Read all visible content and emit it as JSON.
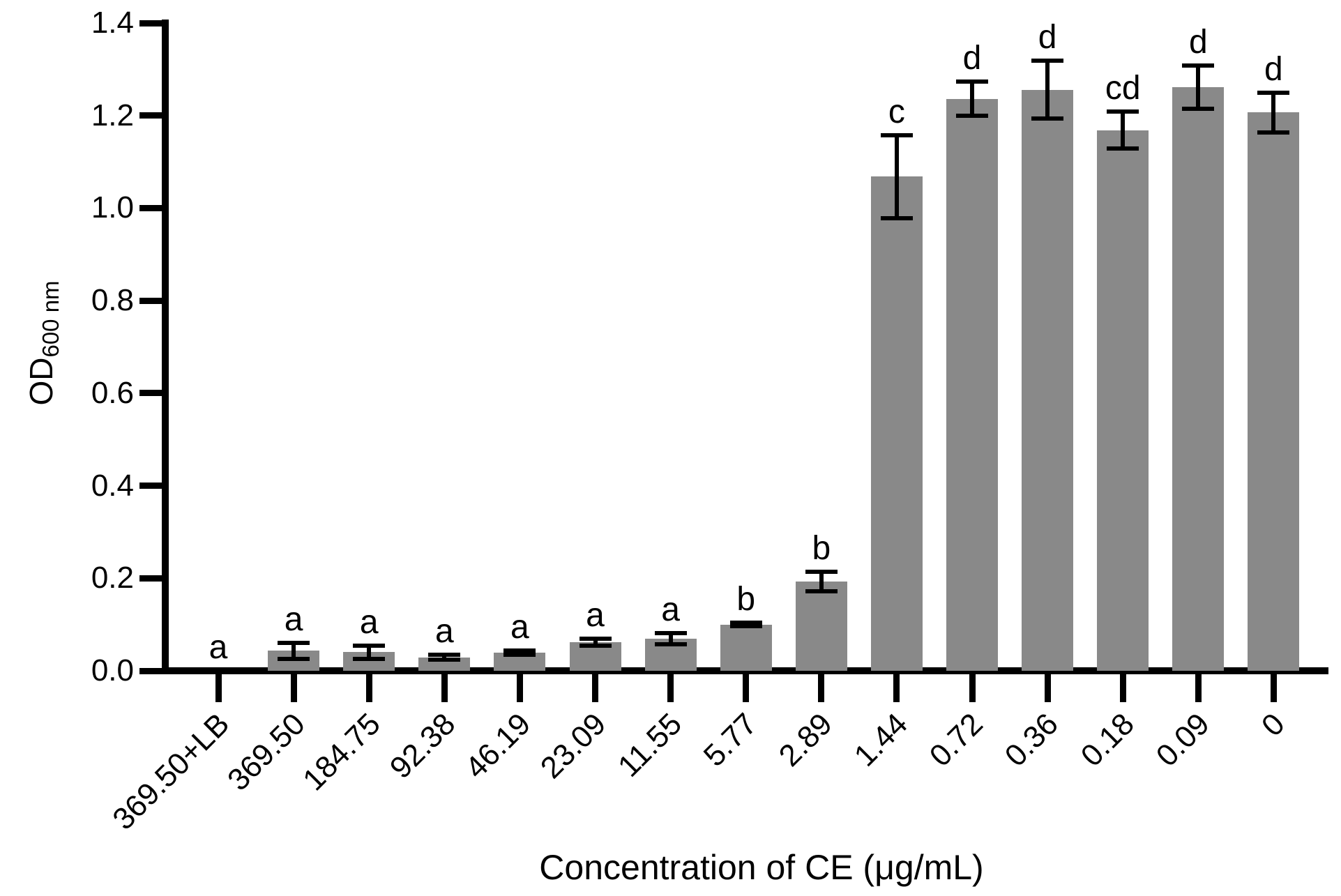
{
  "figure": {
    "background_color": "#ffffff",
    "bar_color": "#898989",
    "axis_color": "#000000"
  },
  "chart_data": {
    "type": "bar",
    "title": "",
    "xlabel": "Concentration of CE (μg/mL)",
    "ylabel_prefix": "OD",
    "ylabel_subscript": "600 nm",
    "ylim": [
      0,
      1.4
    ],
    "yticks": [
      0.0,
      0.2,
      0.4,
      0.6,
      0.8,
      1.0,
      1.2,
      1.4
    ],
    "ytick_labels": [
      "0.0",
      "0.2",
      "0.4",
      "0.6",
      "0.8",
      "1.0",
      "1.2",
      "1.4"
    ],
    "categories": [
      "369.50+LB",
      "369.50",
      "184.75",
      "92.38",
      "46.19",
      "23.09",
      "11.55",
      "5.77",
      "2.89",
      "1.44",
      "0.72",
      "0.36",
      "0.18",
      "0.09",
      "0"
    ],
    "values": [
      0,
      0.043,
      0.04,
      0.029,
      0.039,
      0.062,
      0.069,
      0.1,
      0.193,
      1.068,
      1.236,
      1.256,
      1.168,
      1.261,
      1.207
    ],
    "errors": [
      0,
      0.017,
      0.014,
      0.005,
      0.004,
      0.008,
      0.012,
      0.004,
      0.021,
      0.09,
      0.037,
      0.062,
      0.04,
      0.047,
      0.043
    ],
    "sig_letters": [
      "a",
      "a",
      "a",
      "a",
      "a",
      "a",
      "a",
      "b",
      "b",
      "c",
      "d",
      "d",
      "cd",
      "d",
      "d"
    ],
    "grid": false,
    "legend": "none"
  }
}
